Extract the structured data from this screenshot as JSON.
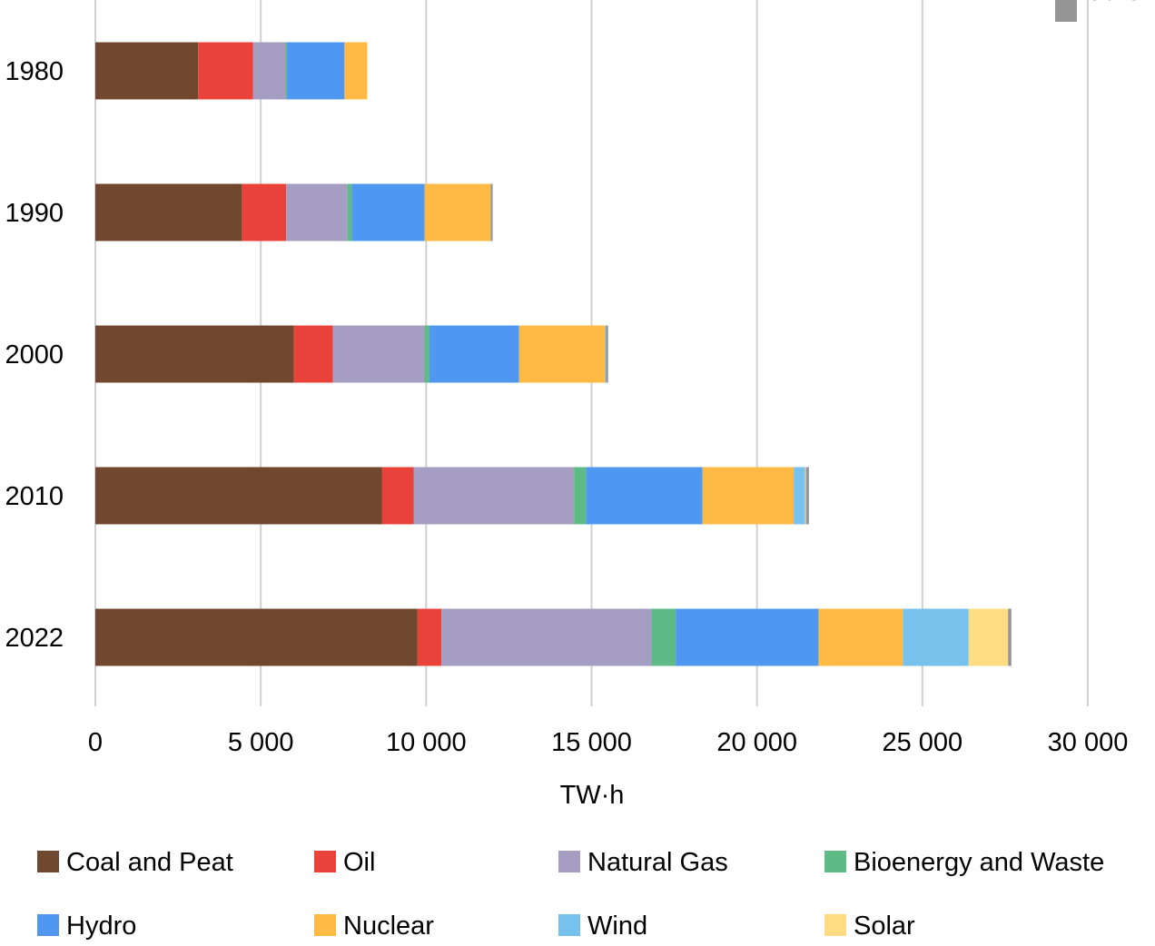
{
  "chart_data": {
    "type": "bar",
    "orientation": "horizontal",
    "stacked": true,
    "title": "",
    "xlabel": "TW·h",
    "ylabel": "",
    "xlim": [
      0,
      30000
    ],
    "x_ticks": [
      0,
      5000,
      10000,
      15000,
      20000,
      25000,
      30000
    ],
    "x_tick_labels": [
      "0",
      "5 000",
      "10 000",
      "15 000",
      "20 000",
      "25 000",
      "30 000"
    ],
    "grid": "vertical",
    "legend_position": "bottom",
    "categories": [
      "1980",
      "1990",
      "2000",
      "2010",
      "2022"
    ],
    "series": [
      {
        "name": "Coal and Peat",
        "color": "#70472f",
        "values": [
          3110,
          4430,
          6000,
          8660,
          9740
        ]
      },
      {
        "name": "Oil",
        "color": "#e8423a",
        "values": [
          1660,
          1340,
          1180,
          960,
          720
        ]
      },
      {
        "name": "Natural Gas",
        "color": "#a59dc2",
        "values": [
          980,
          1850,
          2770,
          4850,
          6350
        ]
      },
      {
        "name": "Bioenergy and Waste",
        "color": "#5fbb86",
        "values": [
          40,
          130,
          150,
          360,
          740
        ]
      },
      {
        "name": "Hydro",
        "color": "#5097f2",
        "values": [
          1740,
          2200,
          2710,
          3520,
          4310
        ]
      },
      {
        "name": "Nuclear",
        "color": "#fdbb45",
        "values": [
          690,
          2000,
          2600,
          2760,
          2550
        ]
      },
      {
        "name": "Wind",
        "color": "#76c2ed",
        "values": [
          0,
          0,
          30,
          340,
          1990
        ]
      },
      {
        "name": "Solar",
        "color": "#fedc84",
        "values": [
          0,
          0,
          0,
          30,
          1190
        ]
      },
      {
        "name": "Other",
        "color": "#959595",
        "values": [
          0,
          60,
          60,
          90,
          100
        ]
      }
    ]
  }
}
